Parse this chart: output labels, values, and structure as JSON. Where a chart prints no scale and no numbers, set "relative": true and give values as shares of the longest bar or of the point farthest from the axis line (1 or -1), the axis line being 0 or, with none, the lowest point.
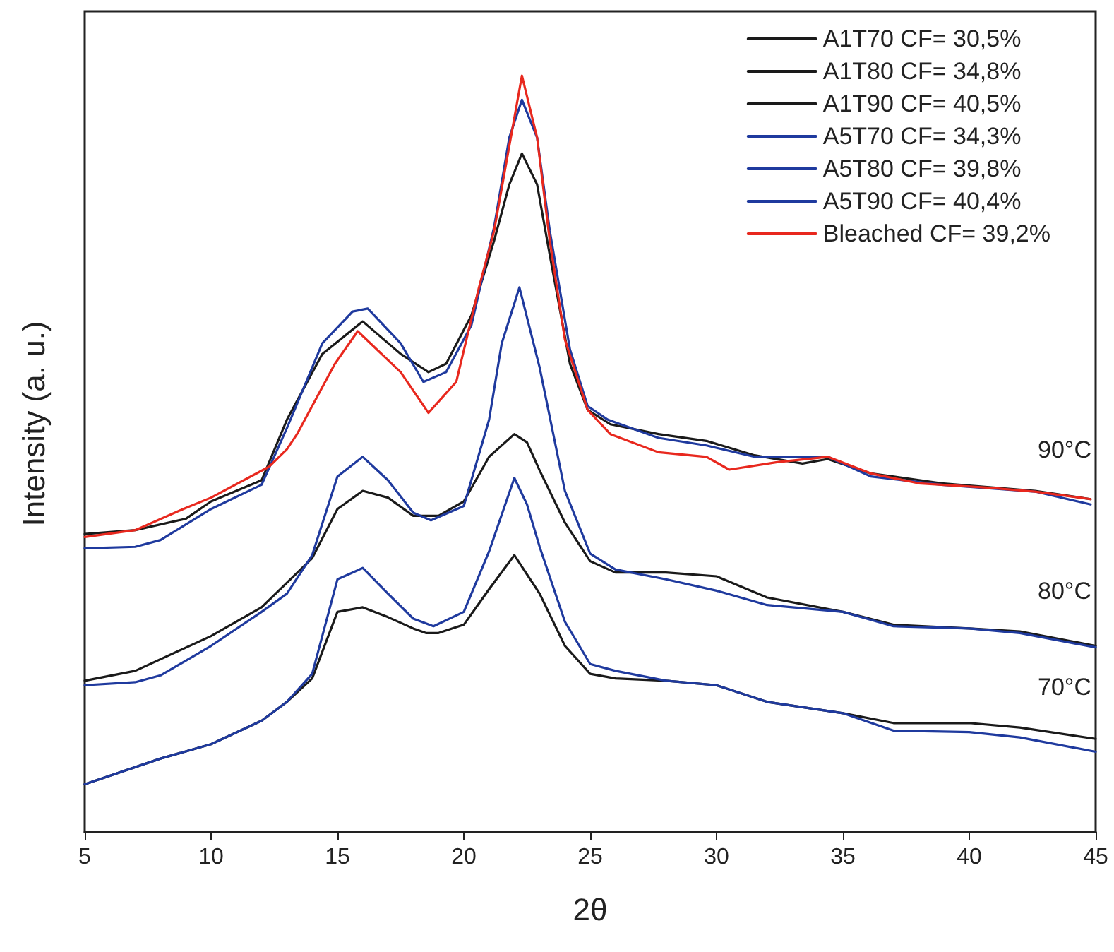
{
  "chart_data": {
    "type": "line",
    "relative": true,
    "xlabel": "2θ",
    "ylabel": "Intensity (a. u.)",
    "xlim": [
      5,
      45
    ],
    "xticks": [
      5,
      10,
      15,
      20,
      25,
      30,
      35,
      40,
      45
    ],
    "legend": "top right",
    "grid": false,
    "marker": "none",
    "line_style": "solid",
    "annotations": [
      "90°C",
      "80°C",
      "70°C"
    ],
    "series": [
      {
        "name": "A1T70 CF= 30,5%",
        "color": "#1a1a1a",
        "x": [
          5,
          8,
          10,
          12,
          13,
          14,
          15,
          16,
          17,
          18,
          18.5,
          19,
          20,
          21,
          22,
          23,
          24,
          25,
          26,
          28,
          30,
          32,
          35,
          37,
          40,
          42,
          45
        ],
        "values": [
          0.063,
          0.097,
          0.116,
          0.147,
          0.172,
          0.203,
          0.291,
          0.297,
          0.284,
          0.269,
          0.263,
          0.263,
          0.274,
          0.321,
          0.366,
          0.315,
          0.246,
          0.209,
          0.203,
          0.2,
          0.194,
          0.172,
          0.157,
          0.144,
          0.144,
          0.138,
          0.123
        ]
      },
      {
        "name": "A1T80 CF= 34,8%",
        "color": "#1a1a1a",
        "x": [
          5,
          7,
          10,
          12,
          14,
          15,
          16,
          17,
          18,
          19,
          20,
          21,
          22,
          22.5,
          23,
          24,
          25,
          26,
          28,
          30,
          32,
          35,
          37,
          40,
          42,
          45
        ],
        "values": [
          0.2,
          0.213,
          0.259,
          0.297,
          0.362,
          0.427,
          0.451,
          0.442,
          0.418,
          0.418,
          0.437,
          0.496,
          0.526,
          0.515,
          0.478,
          0.409,
          0.358,
          0.343,
          0.343,
          0.338,
          0.31,
          0.291,
          0.274,
          0.269,
          0.265,
          0.246
        ]
      },
      {
        "name": "A1T90 CF= 40,5%",
        "color": "#1a1a1a",
        "x": [
          5,
          7,
          9,
          10,
          12,
          13,
          14.4,
          16,
          17.5,
          18.6,
          19.3,
          20.3,
          21.2,
          21.8,
          22.3,
          22.9,
          23.4,
          24.2,
          24.9,
          25.8,
          27.7,
          29.6,
          31.5,
          33.4,
          34.4,
          36.1,
          38.9,
          42.6,
          44.8
        ],
        "values": [
          0.394,
          0.399,
          0.414,
          0.437,
          0.465,
          0.545,
          0.632,
          0.675,
          0.632,
          0.608,
          0.619,
          0.683,
          0.782,
          0.856,
          0.897,
          0.856,
          0.763,
          0.619,
          0.558,
          0.539,
          0.526,
          0.517,
          0.498,
          0.487,
          0.493,
          0.474,
          0.461,
          0.451,
          0.44
        ]
      },
      {
        "name": "A5T70 CF= 34,3%",
        "color": "#1f3a9e",
        "x": [
          5,
          8,
          10,
          12,
          13,
          14,
          15,
          16,
          17,
          18,
          18.8,
          20,
          21,
          22,
          22.5,
          23,
          24,
          25,
          26,
          28,
          30,
          32,
          35,
          37,
          40,
          42,
          45
        ],
        "values": [
          0.063,
          0.097,
          0.116,
          0.147,
          0.172,
          0.209,
          0.334,
          0.349,
          0.315,
          0.282,
          0.272,
          0.291,
          0.371,
          0.468,
          0.433,
          0.377,
          0.278,
          0.222,
          0.213,
          0.2,
          0.194,
          0.172,
          0.157,
          0.134,
          0.132,
          0.125,
          0.106
        ]
      },
      {
        "name": "A5T80 CF= 39,8%",
        "color": "#1f3a9e",
        "x": [
          5,
          7,
          8,
          10,
          12,
          13,
          14,
          15,
          16,
          17,
          18,
          18.7,
          20,
          21,
          21.5,
          22.2,
          23,
          24,
          25,
          26,
          28,
          30,
          32,
          35,
          37,
          40,
          42,
          45
        ],
        "values": [
          0.194,
          0.198,
          0.207,
          0.246,
          0.291,
          0.315,
          0.366,
          0.47,
          0.496,
          0.465,
          0.422,
          0.412,
          0.431,
          0.545,
          0.646,
          0.72,
          0.614,
          0.451,
          0.368,
          0.347,
          0.334,
          0.319,
          0.3,
          0.291,
          0.272,
          0.269,
          0.263,
          0.244
        ]
      },
      {
        "name": "A5T90 CF= 40,4%",
        "color": "#1f3a9e",
        "x": [
          5,
          7,
          8,
          10,
          12,
          13,
          14.4,
          15.6,
          16.2,
          17.5,
          18.4,
          19.3,
          20.3,
          21.2,
          21.8,
          22.3,
          22.9,
          23.4,
          24.2,
          24.9,
          25.7,
          27.7,
          29.6,
          31.5,
          34.4,
          36.1,
          38.9,
          42.6,
          44.8
        ],
        "values": [
          0.375,
          0.377,
          0.386,
          0.427,
          0.459,
          0.534,
          0.646,
          0.688,
          0.692,
          0.646,
          0.595,
          0.608,
          0.67,
          0.8,
          0.918,
          0.968,
          0.918,
          0.795,
          0.638,
          0.563,
          0.545,
          0.521,
          0.511,
          0.496,
          0.496,
          0.47,
          0.459,
          0.45,
          0.433
        ]
      },
      {
        "name": "Bleached CF= 39,2%",
        "color": "#e8281e",
        "x": [
          5,
          7,
          8.9,
          10,
          12.3,
          13,
          13.4,
          14.9,
          15.8,
          17.5,
          18.6,
          19.7,
          20.6,
          21.2,
          21.8,
          22.3,
          22.9,
          23.4,
          24,
          24.9,
          25.8,
          27.7,
          29.6,
          30.5,
          32.4,
          34.4,
          36.1,
          38,
          40.8,
          42.6,
          44.8
        ],
        "values": [
          0.39,
          0.399,
          0.427,
          0.442,
          0.483,
          0.506,
          0.526,
          0.619,
          0.662,
          0.608,
          0.554,
          0.595,
          0.72,
          0.795,
          0.907,
          1,
          0.918,
          0.782,
          0.651,
          0.558,
          0.526,
          0.502,
          0.496,
          0.479,
          0.489,
          0.496,
          0.474,
          0.461,
          0.455,
          0.45,
          0.44
        ]
      }
    ]
  }
}
